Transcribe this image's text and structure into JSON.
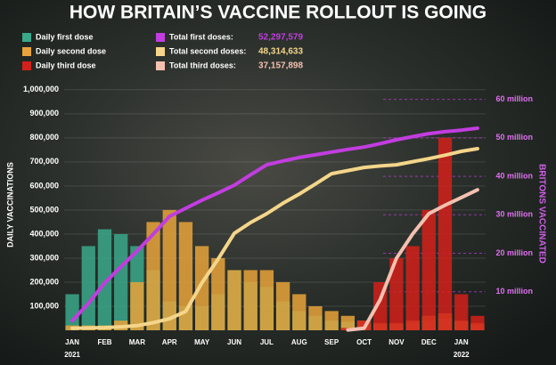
{
  "chart_data": {
    "type": "bar",
    "title": "HOW BRITAIN’S VACCINE ROLLOUT IS GOING",
    "y_label": "DAILY VACCINATIONS",
    "y2_label": "BRITONS VACCINATED",
    "annotations": [
      "2021",
      "2022"
    ],
    "categories": [
      "JAN",
      null,
      "FEB",
      null,
      "MAR",
      null,
      "APR",
      null,
      "MAY",
      null,
      "JUN",
      null,
      "JUL",
      null,
      "AUG",
      null,
      "SEP",
      null,
      "OCT",
      null,
      "NOV",
      null,
      "DEC",
      null,
      "JAN",
      null
    ],
    "ylim": [
      0,
      1040000
    ],
    "yticks": [
      {
        "value": 100000,
        "label": "100,000"
      },
      {
        "value": 200000,
        "label": "200,000"
      },
      {
        "value": 300000,
        "label": "300,000"
      },
      {
        "value": 400000,
        "label": "400,000"
      },
      {
        "value": 500000,
        "label": "500,000"
      },
      {
        "value": 600000,
        "label": "600,000"
      },
      {
        "value": 700000,
        "label": "700,000"
      },
      {
        "value": 800000,
        "label": "800,000"
      },
      {
        "value": 900000,
        "label": "900,000"
      },
      {
        "value": 1000000,
        "label": "1,000,000"
      }
    ],
    "y2lim": [
      0,
      65000000
    ],
    "y2ticks": [
      {
        "value": 10000000,
        "label": "10 million"
      },
      {
        "value": 20000000,
        "label": "20 million"
      },
      {
        "value": 30000000,
        "label": "30 million"
      },
      {
        "value": 40000000,
        "label": "40 million"
      },
      {
        "value": 50000000,
        "label": "50 million"
      },
      {
        "value": 60000000,
        "label": "60 million"
      }
    ],
    "grid": true,
    "series": [
      {
        "name": "Daily first dose",
        "color": "#3aa88a",
        "values": [
          150000,
          350000,
          420000,
          400000,
          350000,
          250000,
          120000,
          100000,
          100000,
          150000,
          250000,
          200000,
          180000,
          120000,
          80000,
          60000,
          40000,
          35000,
          30000,
          25000,
          25000,
          30000,
          40000,
          50000,
          35000,
          20000
        ]
      },
      {
        "name": "Daily second dose",
        "color": "#e8a33a",
        "values": [
          20000,
          20000,
          20000,
          40000,
          200000,
          450000,
          500000,
          450000,
          350000,
          300000,
          250000,
          250000,
          250000,
          200000,
          150000,
          100000,
          80000,
          60000,
          40000,
          30000,
          30000,
          40000,
          60000,
          70000,
          40000,
          30000
        ]
      },
      {
        "name": "Daily third dose",
        "color": "#d4201a",
        "values": [
          0,
          0,
          0,
          0,
          0,
          0,
          0,
          0,
          0,
          0,
          0,
          0,
          0,
          0,
          0,
          0,
          0,
          10000,
          40000,
          200000,
          300000,
          350000,
          500000,
          800000,
          150000,
          60000
        ]
      },
      {
        "name": "Total first doses:",
        "type": "line",
        "axis": "y2",
        "color": "#c23de0",
        "total": 52297579,
        "total_label": "52,297,579",
        "values": [
          2500000,
          7000000,
          12300000,
          16500000,
          20600000,
          25000000,
          29600000,
          31700000,
          33800000,
          35700000,
          37700000,
          40400000,
          43000000,
          44000000,
          44900000,
          45600000,
          46300000,
          47000000,
          47600000,
          48500000,
          49500000,
          50300000,
          51100000,
          51600000,
          52000000,
          52500000
        ]
      },
      {
        "name": "Total second doses:",
        "type": "line",
        "axis": "y2",
        "color": "#f4d58a",
        "total": 48314633,
        "total_label": "48,314,633",
        "values": [
          500000,
          600000,
          700000,
          900000,
          1200000,
          2000000,
          3000000,
          4900000,
          12300000,
          18500000,
          25200000,
          28000000,
          30300000,
          33000000,
          35400000,
          38000000,
          40700000,
          41500000,
          42300000,
          42700000,
          43000000,
          43800000,
          44600000,
          45500000,
          46500000,
          47200000
        ]
      },
      {
        "name": "Total third doses:",
        "type": "line",
        "axis": "y2",
        "color": "#f4c0b0",
        "total": 37157898,
        "total_label": "37,157,898",
        "values": [
          null,
          null,
          null,
          null,
          null,
          null,
          null,
          null,
          null,
          null,
          null,
          null,
          null,
          null,
          null,
          null,
          null,
          100000,
          500000,
          8000000,
          18700000,
          25000000,
          30300000,
          32500000,
          34500000,
          36500000
        ]
      }
    ]
  }
}
